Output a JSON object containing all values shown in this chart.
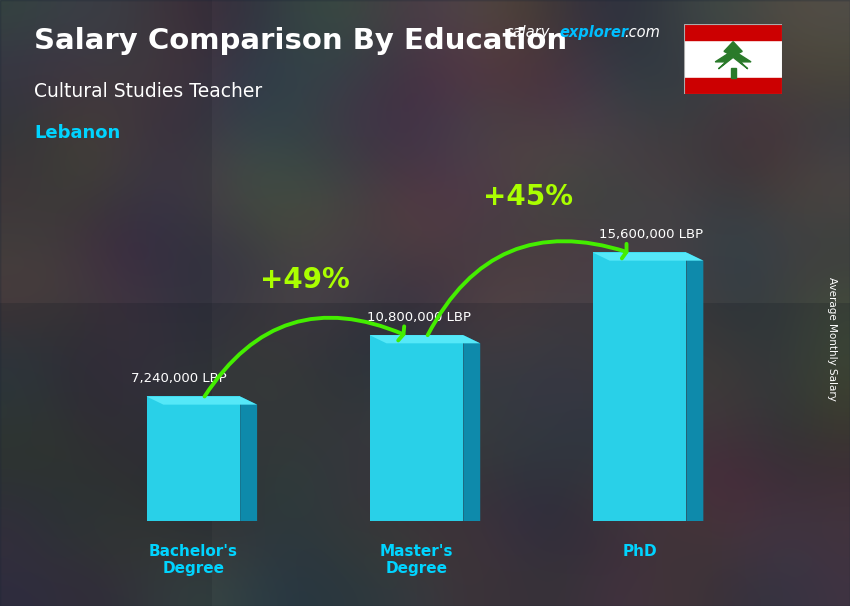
{
  "title_main": "Salary Comparison By Education",
  "subtitle": "Cultural Studies Teacher",
  "location": "Lebanon",
  "watermark_salary": "salary",
  "watermark_explorer": "explorer",
  "watermark_com": ".com",
  "side_label": "Average Monthly Salary",
  "categories": [
    "Bachelor's\nDegree",
    "Master's\nDegree",
    "PhD"
  ],
  "values": [
    7240000,
    10800000,
    15600000
  ],
  "value_labels": [
    "7,240,000 LBP",
    "10,800,000 LBP",
    "15,600,000 LBP"
  ],
  "pct_labels": [
    "+49%",
    "+45%"
  ],
  "bar_color_main": "#29d0e8",
  "bar_color_light": "#55e8f8",
  "bar_color_dark": "#1aacca",
  "bar_color_side": "#0e8aab",
  "arrow_color": "#44ee00",
  "pct_color": "#aaff00",
  "bg_overlay_color": "#1a2535",
  "bg_overlay_alpha": 0.55,
  "title_color": "#ffffff",
  "subtitle_color": "#ffffff",
  "location_color": "#00d4ff",
  "label_color": "#ffffff",
  "cat_label_color": "#00d4ff",
  "watermark_salary_color": "#ffffff",
  "watermark_explorer_color": "#00bfff",
  "watermark_com_color": "#ffffff",
  "ylim": [
    0,
    19000000
  ],
  "bar_width": 0.42,
  "x_positions": [
    0,
    1,
    2
  ],
  "figsize": [
    8.5,
    6.06
  ],
  "dpi": 100
}
